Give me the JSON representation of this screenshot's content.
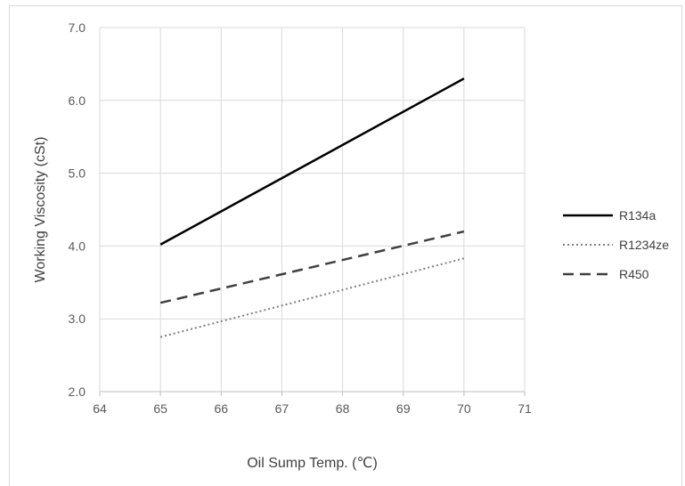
{
  "chart_data": {
    "type": "line",
    "title": "",
    "xlabel": "Oil Sump Temp. (℃)",
    "ylabel": "Working Viscosity (cSt)",
    "xlim": [
      64,
      71
    ],
    "ylim": [
      2.0,
      7.0
    ],
    "x_ticks": [
      "64",
      "65",
      "66",
      "67",
      "68",
      "69",
      "70",
      "71"
    ],
    "y_ticks": [
      "2.0",
      "3.0",
      "4.0",
      "5.0",
      "6.0",
      "7.0"
    ],
    "grid": true,
    "legend_position": "right",
    "series": [
      {
        "name": "R134a",
        "x": [
          65,
          70
        ],
        "y": [
          4.02,
          6.3
        ],
        "color": "#000000",
        "style": "solid"
      },
      {
        "name": "R1234ze",
        "x": [
          65,
          70
        ],
        "y": [
          2.75,
          3.83
        ],
        "color": "#808080",
        "style": "dotted"
      },
      {
        "name": "R450",
        "x": [
          65,
          70
        ],
        "y": [
          3.22,
          4.2
        ],
        "color": "#404040",
        "style": "dashed"
      }
    ]
  }
}
